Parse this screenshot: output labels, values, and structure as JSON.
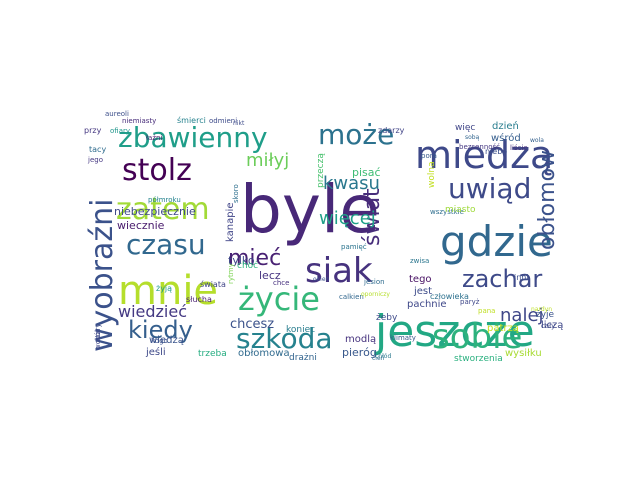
{
  "word_cloud": {
    "colormap": "viridis",
    "background": "#ffffff",
    "words": [
      {
        "text": "byle",
        "color": "#482878"
      },
      {
        "text": "gdzie",
        "color": "#31688e"
      },
      {
        "text": "jeszcze",
        "color": "#22a884"
      },
      {
        "text": "mnie",
        "color": "#b5de2b"
      },
      {
        "text": "miedzą",
        "color": "#3e4989"
      },
      {
        "text": "siak",
        "color": "#46327e"
      },
      {
        "text": "sobie",
        "color": "#2db27d"
      },
      {
        "text": "życie",
        "color": "#35b779"
      },
      {
        "text": "wyobraźni",
        "color": "#3b528b"
      },
      {
        "text": "szkoda",
        "color": "#26828e"
      },
      {
        "text": "uwiąd",
        "color": "#3e4a89"
      },
      {
        "text": "zbawienny",
        "color": "#1f9e89"
      },
      {
        "text": "stolz",
        "color": "#440154"
      },
      {
        "text": "zatem",
        "color": "#a2da37"
      },
      {
        "text": "czasu",
        "color": "#31688e"
      },
      {
        "text": "kiedy",
        "color": "#355f8d"
      },
      {
        "text": "może",
        "color": "#2c728e"
      },
      {
        "text": "świat",
        "color": "#472d7b"
      },
      {
        "text": "obłomow",
        "color": "#3b528b"
      },
      {
        "text": "zachar",
        "color": "#3e4a89"
      },
      {
        "text": "mieć",
        "color": "#482173"
      },
      {
        "text": "miłyj",
        "color": "#6ccd5a"
      },
      {
        "text": "kwasu",
        "color": "#2a788e"
      },
      {
        "text": "więcej",
        "color": "#1fa088"
      },
      {
        "text": "nalej",
        "color": "#3f4788"
      },
      {
        "text": "wiedzieć",
        "color": "#443983"
      },
      {
        "text": "chcesz",
        "color": "#3b528b"
      },
      {
        "text": "pieróg",
        "color": "#38588c"
      },
      {
        "text": "niebezpiecznie",
        "color": "#3f4889"
      },
      {
        "text": "wiecznie",
        "color": "#481a6c"
      },
      {
        "text": "wiedzą",
        "color": "#3a548c"
      },
      {
        "text": "jeśli",
        "color": "#3e4989"
      },
      {
        "text": "obłomowa",
        "color": "#306a8e"
      },
      {
        "text": "drażni",
        "color": "#32648e"
      },
      {
        "text": "tylko",
        "color": "#3f4788"
      },
      {
        "text": "kanapie",
        "color": "#404588"
      },
      {
        "text": "pisać",
        "color": "#3dbc74"
      },
      {
        "text": "lecz",
        "color": "#463480"
      },
      {
        "text": "modlą",
        "color": "#46337e"
      },
      {
        "text": "tego",
        "color": "#471063"
      },
      {
        "text": "jest",
        "color": "#3e4c8a"
      },
      {
        "text": "pachnie",
        "color": "#3f4889"
      },
      {
        "text": "zdarzy",
        "color": "#414487"
      },
      {
        "text": "więc",
        "color": "#404688"
      },
      {
        "text": "dzień",
        "color": "#287d8e"
      },
      {
        "text": "wśród",
        "color": "#355e8d"
      },
      {
        "text": "niebo",
        "color": "#3c4f8a"
      },
      {
        "text": "pora",
        "color": "#375a8c"
      },
      {
        "text": "człowieka",
        "color": "#2d718e"
      },
      {
        "text": "żyje",
        "color": "#3a538b"
      },
      {
        "text": "liczą",
        "color": "#3f4889"
      },
      {
        "text": "wysiłku",
        "color": "#a8db34"
      },
      {
        "text": "patrzą",
        "color": "#c8e020"
      },
      {
        "text": "stworzenia",
        "color": "#2ab07f"
      },
      {
        "text": "klimaty",
        "color": "#39568c"
      },
      {
        "text": "żeby",
        "color": "#3e4a89"
      },
      {
        "text": "koniec",
        "color": "#287d8e"
      },
      {
        "text": "trzeba",
        "color": "#26ad81"
      },
      {
        "text": "śmierci",
        "color": "#26828e"
      },
      {
        "text": "niemiasty",
        "color": "#472c7a"
      },
      {
        "text": "odmieni",
        "color": "#3e4c8a"
      },
      {
        "text": "przy",
        "color": "#453781"
      },
      {
        "text": "aureoli",
        "color": "#3c4f8a"
      },
      {
        "text": "ofiary",
        "color": "#1f968b"
      },
      {
        "text": "łaźni",
        "color": "#48186a"
      },
      {
        "text": "tacy",
        "color": "#2f6c8e"
      },
      {
        "text": "jego",
        "color": "#453882"
      },
      {
        "text": "półmroku",
        "color": "#25838e"
      },
      {
        "text": "skoro",
        "color": "#2e6f8e"
      },
      {
        "text": "przeczą",
        "color": "#48c16e"
      },
      {
        "text": "wolna",
        "color": "#c2df23"
      },
      {
        "text": "wszystkie",
        "color": "#2e6e8e"
      },
      {
        "text": "miasto",
        "color": "#9fda3a"
      },
      {
        "text": "bezsenność",
        "color": "#453882"
      },
      {
        "text": "liście",
        "color": "#46337e"
      },
      {
        "text": "wola",
        "color": "#34608d"
      },
      {
        "text": "sobą",
        "color": "#32658e"
      },
      {
        "text": "nikt",
        "color": "#3e4c8a"
      },
      {
        "text": "inni",
        "color": "#3c4f8a"
      },
      {
        "text": "pana",
        "color": "#c0df25"
      },
      {
        "text": "cały",
        "color": "#3e4989"
      },
      {
        "text": "nardyn",
        "color": "#bddf26"
      },
      {
        "text": "pamięć",
        "color": "#2b748e"
      },
      {
        "text": "choć",
        "color": "#2db27d"
      },
      {
        "text": "chce",
        "color": "#46307e"
      },
      {
        "text": "okien",
        "color": "#3b518b"
      },
      {
        "text": "calkien",
        "color": "#31678e"
      },
      {
        "text": "zwisa",
        "color": "#2a768e"
      },
      {
        "text": "jesion",
        "color": "#2f6b8e"
      },
      {
        "text": "oporniczy",
        "color": "#b5de2b"
      },
      {
        "text": "paryż",
        "color": "#3f4889"
      },
      {
        "text": "cień",
        "color": "#2e6e8e"
      },
      {
        "text": "świata",
        "color": "#404588"
      },
      {
        "text": "słucha",
        "color": "#481f70"
      },
      {
        "text": "żyją",
        "color": "#1f9a8a"
      },
      {
        "text": "stary",
        "color": "#3e4c8a"
      },
      {
        "text": "kogo",
        "color": "#3b518b"
      },
      {
        "text": "wokół",
        "color": "#3f4788"
      },
      {
        "text": "rytmy",
        "color": "#7ad151"
      },
      {
        "text": "chłód",
        "color": "#2a788e"
      }
    ]
  }
}
